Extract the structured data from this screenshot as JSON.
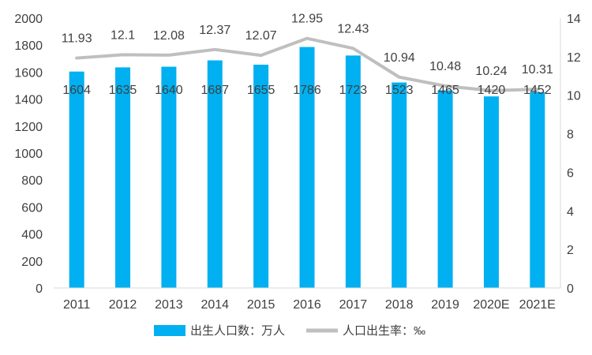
{
  "chart_data": {
    "type": "bar",
    "categories": [
      "2011",
      "2012",
      "2013",
      "2014",
      "2015",
      "2016",
      "2017",
      "2018",
      "2019",
      "2020E",
      "2021E"
    ],
    "series": [
      {
        "name": "出生人口数：万人",
        "type": "bar",
        "axis": "left",
        "color": "#00B0F0",
        "values": [
          1604,
          1635,
          1640,
          1687,
          1655,
          1786,
          1723,
          1523,
          1465,
          1420,
          1452
        ]
      },
      {
        "name": "人口出生率：‰",
        "type": "line",
        "axis": "right",
        "color": "#BFBFBF",
        "values": [
          11.93,
          12.1,
          12.08,
          12.37,
          12.07,
          12.95,
          12.43,
          10.94,
          10.48,
          10.24,
          10.31
        ]
      }
    ],
    "left_axis": {
      "min": 0,
      "max": 2000,
      "step": 200
    },
    "right_axis": {
      "min": 0,
      "max": 14,
      "step": 2
    },
    "grid": false,
    "legend_position": "bottom"
  }
}
